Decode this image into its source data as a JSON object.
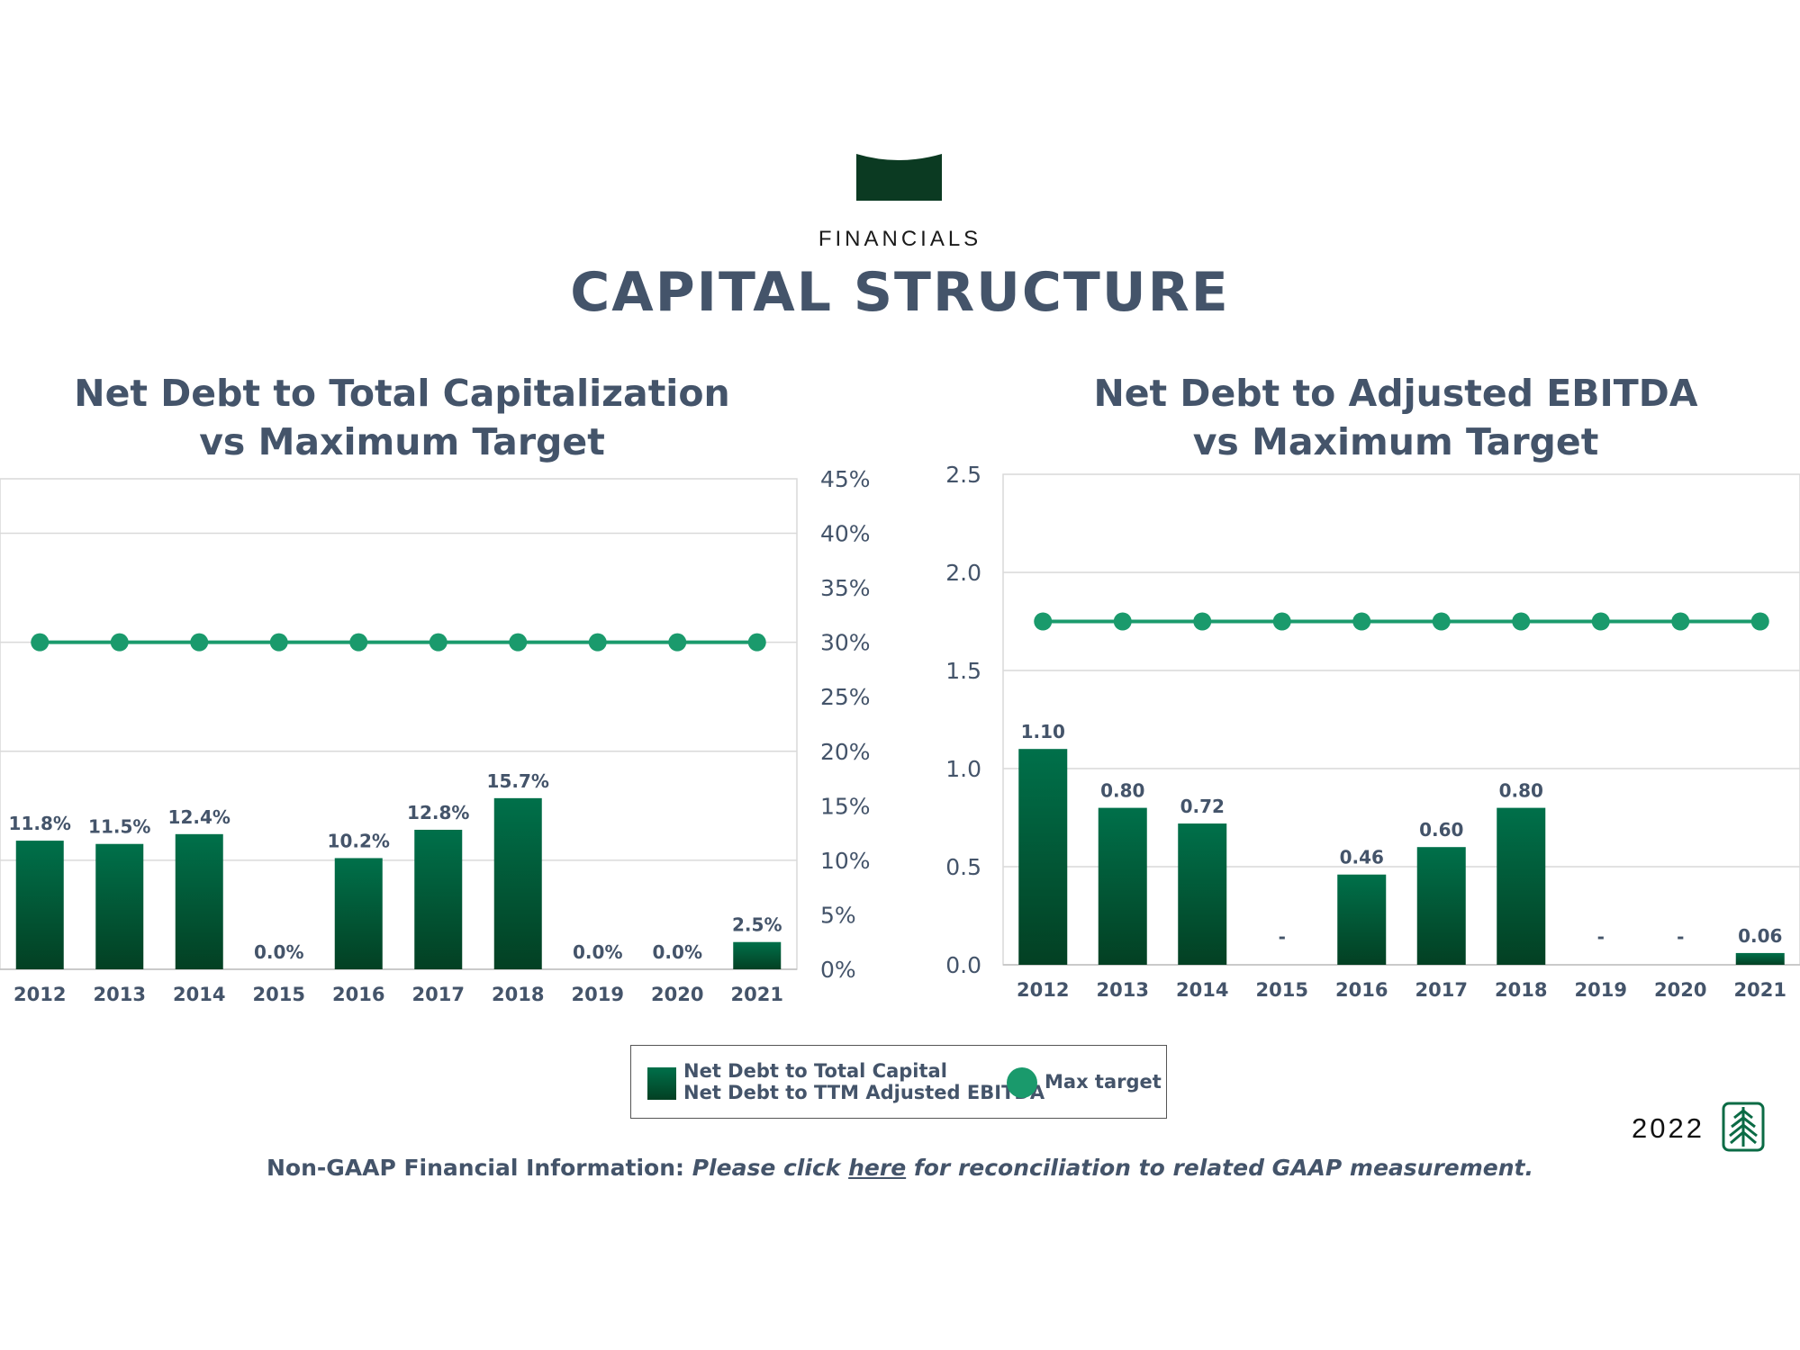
{
  "header": {
    "section_label": "FINANCIALS",
    "title": "CAPITAL STRUCTURE"
  },
  "colors": {
    "bar_top": "#00704a",
    "bar_bottom": "#034023",
    "target_line": "#1a9a6c",
    "text": "#44546a",
    "grid": "#d9d9d9"
  },
  "chart_data": [
    {
      "type": "bar",
      "title_line1": "Net Debt to Total Capitalization",
      "title_line2": "vs Maximum Target",
      "categories": [
        "2012",
        "2013",
        "2014",
        "2015",
        "2016",
        "2017",
        "2018",
        "2019",
        "2020",
        "2021"
      ],
      "values": [
        11.8,
        11.5,
        12.4,
        0.0,
        10.2,
        12.8,
        15.7,
        0.0,
        0.0,
        2.5
      ],
      "labels": [
        "11.8%",
        "11.5%",
        "12.4%",
        "0.0%",
        "10.2%",
        "12.8%",
        "15.7%",
        "0.0%",
        "0.0%",
        "2.5%"
      ],
      "target_values": [
        30,
        30,
        30,
        30,
        30,
        30,
        30,
        30,
        30,
        30
      ],
      "y_ticks": [
        "0%",
        "5%",
        "10%",
        "15%",
        "20%",
        "25%",
        "30%",
        "35%",
        "40%",
        "45%"
      ],
      "ylim": [
        0,
        45
      ],
      "y_axis_side": "right"
    },
    {
      "type": "bar",
      "title_line1": "Net Debt to Adjusted EBITDA",
      "title_line2": "vs Maximum Target",
      "categories": [
        "2012",
        "2013",
        "2014",
        "2015",
        "2016",
        "2017",
        "2018",
        "2019",
        "2020",
        "2021"
      ],
      "values": [
        1.1,
        0.8,
        0.72,
        0,
        0.46,
        0.6,
        0.8,
        0,
        0,
        0.06
      ],
      "labels": [
        "1.10",
        "0.80",
        "0.72",
        "-",
        "0.46",
        "0.60",
        "0.80",
        "-",
        "-",
        "0.06"
      ],
      "target_values": [
        1.75,
        1.75,
        1.75,
        1.75,
        1.75,
        1.75,
        1.75,
        1.75,
        1.75,
        1.75
      ],
      "y_ticks": [
        "0.0",
        "0.5",
        "1.0",
        "1.5",
        "2.0",
        "2.5"
      ],
      "ylim": [
        0,
        2.5
      ],
      "y_axis_side": "left"
    }
  ],
  "legend": {
    "bar_line1": "Net Debt to Total Capital",
    "bar_line2": "Net Debt to TTM Adjusted EBITDA",
    "target": "Max target"
  },
  "footer": {
    "year": "2022",
    "note_prefix": "Non-GAAP Financial Information: ",
    "note_italic1": "Please click ",
    "note_link": "here",
    "note_italic2": " for reconciliation to related GAAP measurement."
  }
}
